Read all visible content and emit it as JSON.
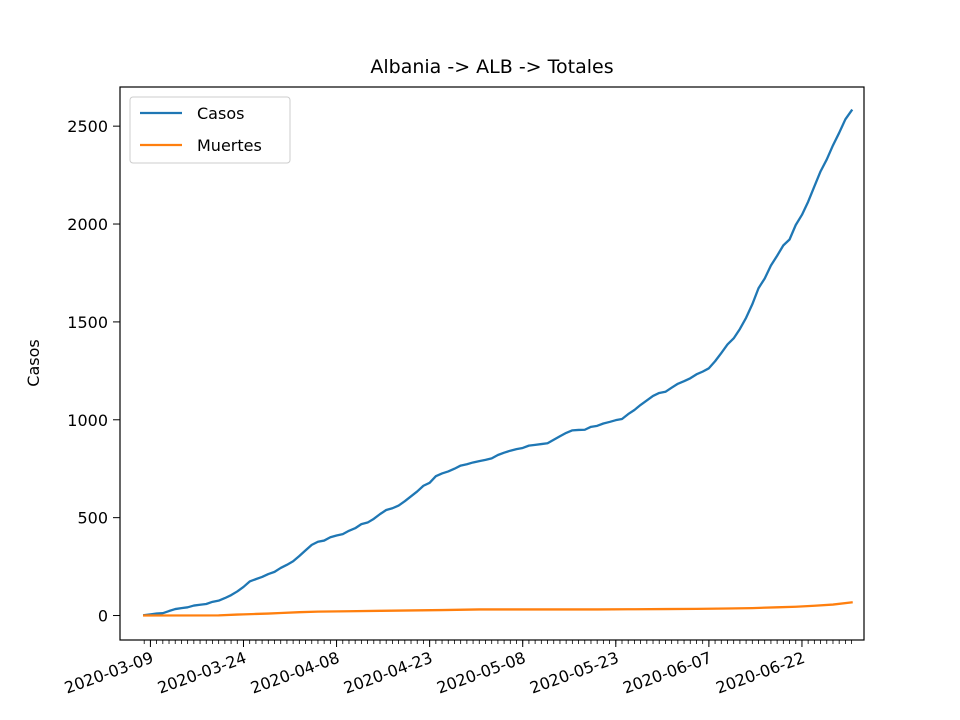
{
  "chart_data": {
    "type": "line",
    "title": "Albania -> ALB -> Totales",
    "xlabel": "",
    "ylabel": "Casos",
    "x_start": "2020-03-08",
    "x_end": "2020-06-23",
    "xticks": [
      "2020-03-09",
      "2020-03-24",
      "2020-04-08",
      "2020-04-23",
      "2020-05-08",
      "2020-05-23",
      "2020-06-07",
      "2020-06-22"
    ],
    "ylim": [
      -125,
      2700
    ],
    "yticks": [
      0,
      500,
      1000,
      1500,
      2000,
      2500
    ],
    "grid": false,
    "legend": "top-left",
    "series": [
      {
        "name": "Casos",
        "color": "#1f77b4",
        "points": [
          [
            "2020-03-08",
            2
          ],
          [
            "2020-03-09",
            6
          ],
          [
            "2020-03-10",
            10
          ],
          [
            "2020-03-11",
            12
          ],
          [
            "2020-03-12",
            23
          ],
          [
            "2020-03-13",
            33
          ],
          [
            "2020-03-14",
            38
          ],
          [
            "2020-03-15",
            42
          ],
          [
            "2020-03-16",
            51
          ],
          [
            "2020-03-17",
            55
          ],
          [
            "2020-03-18",
            59
          ],
          [
            "2020-03-19",
            70
          ],
          [
            "2020-03-20",
            76
          ],
          [
            "2020-03-21",
            89
          ],
          [
            "2020-03-22",
            104
          ],
          [
            "2020-03-23",
            123
          ],
          [
            "2020-03-24",
            146
          ],
          [
            "2020-03-25",
            174
          ],
          [
            "2020-03-26",
            186
          ],
          [
            "2020-03-27",
            197
          ],
          [
            "2020-03-28",
            212
          ],
          [
            "2020-03-29",
            223
          ],
          [
            "2020-03-30",
            243
          ],
          [
            "2020-03-31",
            259
          ],
          [
            "2020-04-01",
            277
          ],
          [
            "2020-04-02",
            304
          ],
          [
            "2020-04-03",
            333
          ],
          [
            "2020-04-04",
            361
          ],
          [
            "2020-04-05",
            377
          ],
          [
            "2020-04-06",
            383
          ],
          [
            "2020-04-07",
            400
          ],
          [
            "2020-04-08",
            409
          ],
          [
            "2020-04-09",
            416
          ],
          [
            "2020-04-10",
            433
          ],
          [
            "2020-04-11",
            446
          ],
          [
            "2020-04-12",
            467
          ],
          [
            "2020-04-13",
            475
          ],
          [
            "2020-04-14",
            494
          ],
          [
            "2020-04-15",
            518
          ],
          [
            "2020-04-16",
            539
          ],
          [
            "2020-04-17",
            548
          ],
          [
            "2020-04-18",
            562
          ],
          [
            "2020-04-19",
            584
          ],
          [
            "2020-04-20",
            609
          ],
          [
            "2020-04-21",
            634
          ],
          [
            "2020-04-22",
            663
          ],
          [
            "2020-04-23",
            678
          ],
          [
            "2020-04-24",
            712
          ],
          [
            "2020-04-25",
            726
          ],
          [
            "2020-04-26",
            736
          ],
          [
            "2020-04-27",
            750
          ],
          [
            "2020-04-28",
            766
          ],
          [
            "2020-04-29",
            773
          ],
          [
            "2020-04-30",
            782
          ],
          [
            "2020-05-01",
            789
          ],
          [
            "2020-05-02",
            795
          ],
          [
            "2020-05-03",
            803
          ],
          [
            "2020-05-04",
            820
          ],
          [
            "2020-05-05",
            832
          ],
          [
            "2020-05-06",
            842
          ],
          [
            "2020-05-07",
            850
          ],
          [
            "2020-05-08",
            856
          ],
          [
            "2020-05-09",
            868
          ],
          [
            "2020-05-10",
            872
          ],
          [
            "2020-05-11",
            876
          ],
          [
            "2020-05-12",
            880
          ],
          [
            "2020-05-13",
            898
          ],
          [
            "2020-05-14",
            916
          ],
          [
            "2020-05-15",
            933
          ],
          [
            "2020-05-16",
            946
          ],
          [
            "2020-05-17",
            948
          ],
          [
            "2020-05-18",
            949
          ],
          [
            "2020-05-19",
            964
          ],
          [
            "2020-05-20",
            969
          ],
          [
            "2020-05-21",
            981
          ],
          [
            "2020-05-22",
            989
          ],
          [
            "2020-05-23",
            998
          ],
          [
            "2020-05-24",
            1004
          ],
          [
            "2020-05-25",
            1029
          ],
          [
            "2020-05-26",
            1050
          ],
          [
            "2020-05-27",
            1076
          ],
          [
            "2020-05-28",
            1099
          ],
          [
            "2020-05-29",
            1122
          ],
          [
            "2020-05-30",
            1137
          ],
          [
            "2020-05-31",
            1143
          ],
          [
            "2020-06-01",
            1164
          ],
          [
            "2020-06-02",
            1184
          ],
          [
            "2020-06-03",
            1197
          ],
          [
            "2020-06-04",
            1212
          ],
          [
            "2020-06-05",
            1232
          ],
          [
            "2020-06-06",
            1246
          ],
          [
            "2020-06-07",
            1263
          ],
          [
            "2020-06-08",
            1299
          ],
          [
            "2020-06-09",
            1341
          ],
          [
            "2020-06-10",
            1385
          ],
          [
            "2020-06-11",
            1416
          ],
          [
            "2020-06-12",
            1464
          ],
          [
            "2020-06-13",
            1521
          ],
          [
            "2020-06-14",
            1590
          ],
          [
            "2020-06-15",
            1672
          ],
          [
            "2020-06-16",
            1722
          ],
          [
            "2020-06-17",
            1788
          ],
          [
            "2020-06-18",
            1838
          ],
          [
            "2020-06-19",
            1891
          ],
          [
            "2020-06-20",
            1921
          ],
          [
            "2020-06-21",
            1995
          ],
          [
            "2020-06-22",
            2047
          ],
          [
            "2020-06-23",
            2114
          ],
          [
            "2020-06-24",
            2192
          ],
          [
            "2020-06-25",
            2269
          ],
          [
            "2020-06-26",
            2330
          ],
          [
            "2020-06-27",
            2402
          ],
          [
            "2020-06-28",
            2466
          ],
          [
            "2020-06-29",
            2535
          ],
          [
            "2020-06-30",
            2580
          ]
        ]
      },
      {
        "name": "Muertes",
        "color": "#ff7f0e",
        "points": [
          [
            "2020-03-08",
            0
          ],
          [
            "2020-03-20",
            1
          ],
          [
            "2020-03-23",
            5
          ],
          [
            "2020-03-24",
            6
          ],
          [
            "2020-03-26",
            8
          ],
          [
            "2020-03-28",
            10
          ],
          [
            "2020-03-30",
            13
          ],
          [
            "2020-04-02",
            17
          ],
          [
            "2020-04-05",
            20
          ],
          [
            "2020-04-10",
            22
          ],
          [
            "2020-04-15",
            24
          ],
          [
            "2020-04-20",
            26
          ],
          [
            "2020-04-25",
            28
          ],
          [
            "2020-05-01",
            31
          ],
          [
            "2020-05-10",
            31
          ],
          [
            "2020-05-20",
            31
          ],
          [
            "2020-05-25",
            32
          ],
          [
            "2020-05-31",
            33
          ],
          [
            "2020-06-05",
            34
          ],
          [
            "2020-06-10",
            36
          ],
          [
            "2020-06-14",
            38
          ],
          [
            "2020-06-18",
            42
          ],
          [
            "2020-06-21",
            45
          ],
          [
            "2020-06-24",
            50
          ],
          [
            "2020-06-27",
            56
          ],
          [
            "2020-06-30",
            67
          ]
        ]
      }
    ]
  }
}
